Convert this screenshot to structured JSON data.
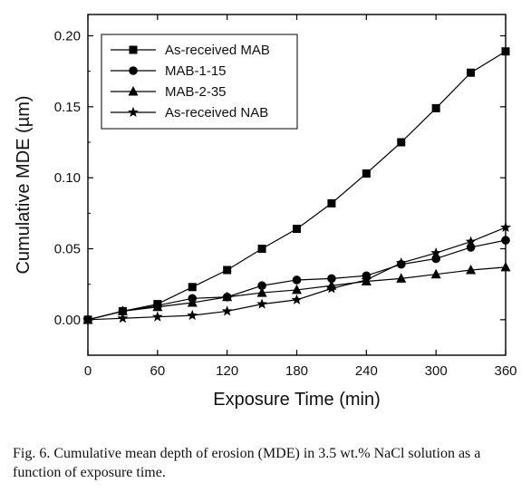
{
  "caption": "Fig. 6. Cumulative mean depth of erosion (MDE) in 3.5 wt.% NaCl solution as a function of exposure time.",
  "chart_data": {
    "type": "line",
    "xlabel": "Exposure Time (min)",
    "ylabel": "Cumulative MDE (µm)",
    "xlim": [
      0,
      360
    ],
    "ylim": [
      -0.025,
      0.215
    ],
    "xticks": [
      0,
      60,
      120,
      180,
      240,
      300,
      360
    ],
    "xtick_labels": [
      "0",
      "60",
      "120",
      "180",
      "240",
      "300",
      "360"
    ],
    "yticks": [
      0.0,
      0.05,
      0.1,
      0.15,
      0.2
    ],
    "ytick_labels": [
      "0.00",
      "0.05",
      "0.10",
      "0.15",
      "0.20"
    ],
    "grid": false,
    "legend": "top-left",
    "x": [
      0,
      30,
      60,
      90,
      120,
      150,
      180,
      210,
      240,
      270,
      300,
      330,
      360
    ],
    "series": [
      {
        "name": "As-received MAB",
        "marker": "square",
        "values": [
          0.0,
          0.006,
          0.011,
          0.023,
          0.035,
          0.05,
          0.064,
          0.082,
          0.103,
          0.125,
          0.149,
          0.174,
          0.189
        ]
      },
      {
        "name": "MAB-1-15",
        "marker": "circle",
        "values": [
          0.0,
          0.006,
          0.01,
          0.015,
          0.016,
          0.024,
          0.028,
          0.029,
          0.031,
          0.039,
          0.043,
          0.051,
          0.056
        ]
      },
      {
        "name": "MAB-2-35",
        "marker": "triangle",
        "values": [
          0.0,
          0.006,
          0.009,
          0.012,
          0.016,
          0.019,
          0.021,
          0.024,
          0.027,
          0.029,
          0.032,
          0.035,
          0.037
        ]
      },
      {
        "name": "As-received NAB",
        "marker": "star",
        "values": [
          0.0,
          0.001,
          0.002,
          0.003,
          0.006,
          0.011,
          0.014,
          0.022,
          0.028,
          0.04,
          0.047,
          0.055,
          0.065
        ]
      }
    ]
  }
}
